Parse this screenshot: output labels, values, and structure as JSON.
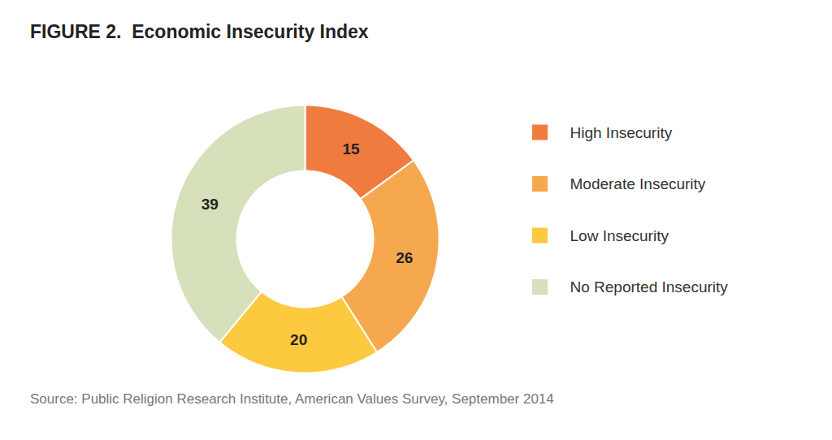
{
  "chart_data": {
    "type": "donut",
    "title": "FIGURE 2.  Economic Insecurity Index",
    "categories": [
      "High Insecurity",
      "Moderate Insecurity",
      "Low Insecurity",
      "No Reported Insecurity"
    ],
    "values": [
      15,
      26,
      20,
      39
    ],
    "colors": [
      "#f07b3f",
      "#f6a84f",
      "#fdc93e",
      "#d6e0ba"
    ],
    "data_labels": true,
    "legend": "right",
    "caption": "Source: Public Religion Research Institute, American Values Survey, September 2014"
  }
}
